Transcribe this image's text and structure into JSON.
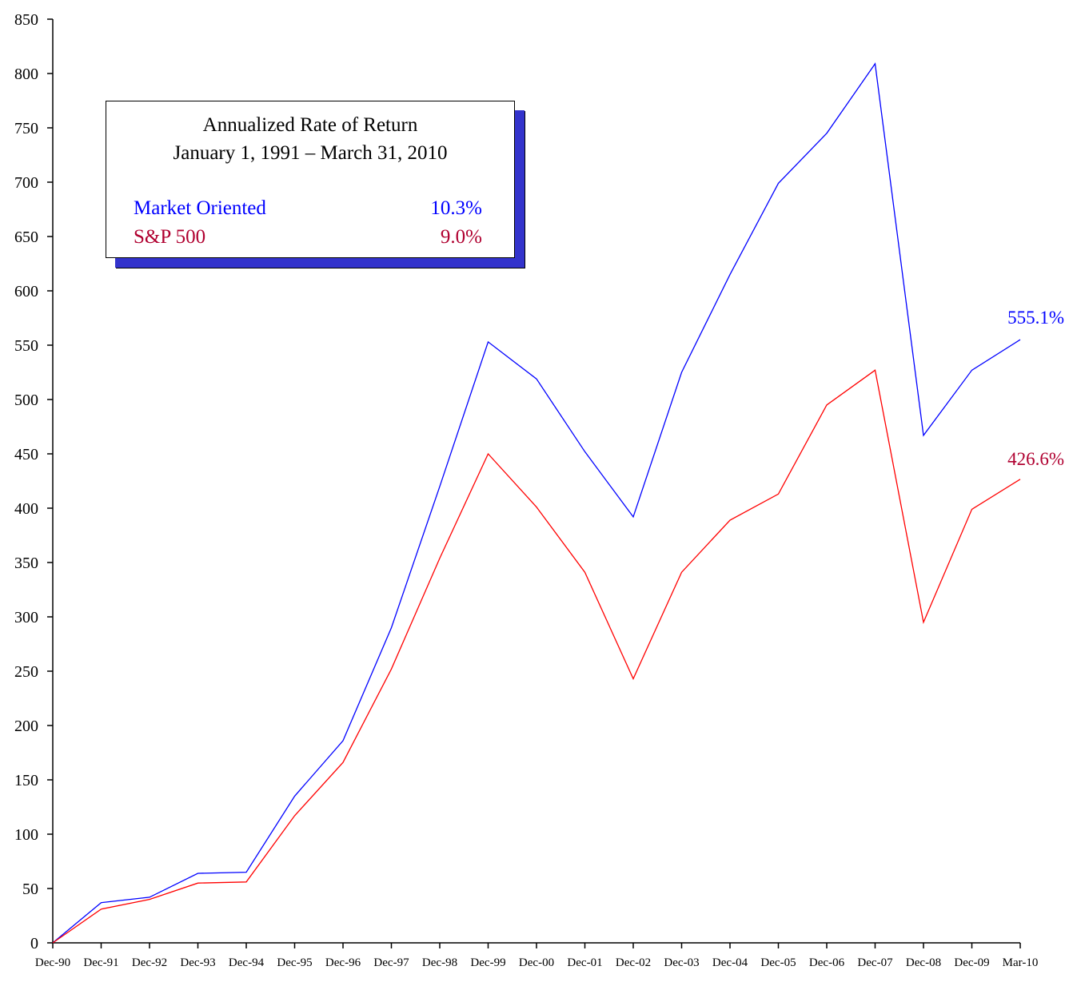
{
  "colors": {
    "market_oriented": "#0000ff",
    "sp500_line": "#ff0000",
    "sp500_text": "#b00030",
    "legend_shadow": "#3333cc",
    "axis": "#000000"
  },
  "legend": {
    "title_line1": "Annualized Rate of Return",
    "title_line2": "January 1, 1991 – March 31, 2010",
    "items": [
      {
        "name": "Market Oriented",
        "value": "10.3%"
      },
      {
        "name": "S&P 500",
        "value": "9.0%"
      }
    ]
  },
  "end_labels": {
    "market_oriented": "555.1%",
    "sp500": "426.6%"
  },
  "chart_data": {
    "type": "line",
    "categories": [
      "Dec-90",
      "Dec-91",
      "Dec-92",
      "Dec-93",
      "Dec-94",
      "Dec-95",
      "Dec-96",
      "Dec-97",
      "Dec-98",
      "Dec-99",
      "Dec-00",
      "Dec-01",
      "Dec-02",
      "Dec-03",
      "Dec-04",
      "Dec-05",
      "Dec-06",
      "Dec-07",
      "Dec-08",
      "Dec-09",
      "Mar-10"
    ],
    "series": [
      {
        "name": "Market Oriented",
        "values": [
          0,
          37,
          42,
          64,
          65,
          135,
          186,
          290,
          420,
          553,
          519,
          452,
          392,
          525,
          615,
          699,
          745,
          809,
          467,
          527,
          555.1
        ]
      },
      {
        "name": "S&P 500",
        "values": [
          0,
          31,
          40,
          55,
          56,
          117,
          166,
          252,
          354,
          450,
          401,
          341,
          243,
          341,
          389,
          413,
          495,
          527,
          295,
          399,
          426.6
        ]
      }
    ],
    "yticks": [
      0,
      50,
      100,
      150,
      200,
      250,
      300,
      350,
      400,
      450,
      500,
      550,
      600,
      650,
      700,
      750,
      800,
      850
    ],
    "ylim": [
      0,
      850
    ],
    "xlabel": "",
    "ylabel": "",
    "title": "",
    "grid": false,
    "legend_position": "top-left"
  }
}
